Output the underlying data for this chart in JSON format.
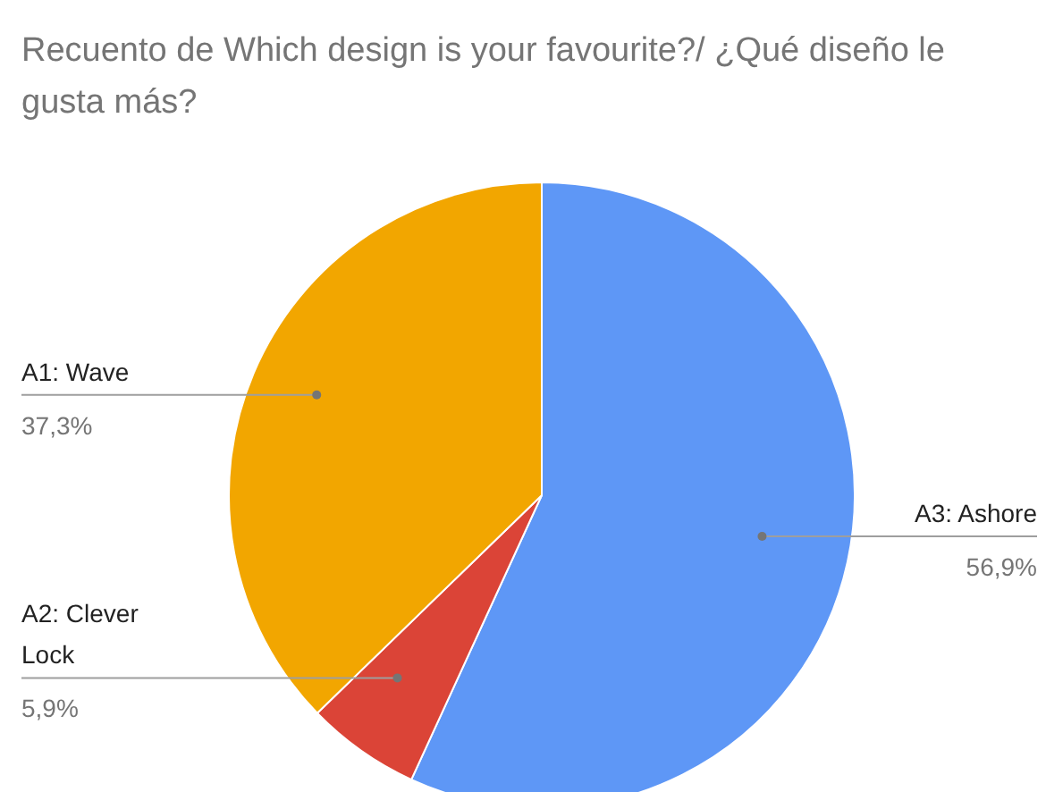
{
  "chart_data": {
    "type": "pie",
    "title": "Recuento de Which design is your favourite?/ ¿Qué diseño le gusta más?",
    "categories": [
      "A3: Ashore",
      "A2: Clever Lock",
      "A1: Wave"
    ],
    "values": [
      56.9,
      5.9,
      37.3
    ],
    "colors": [
      "#5e97f6",
      "#db4437",
      "#f2a600"
    ],
    "value_labels": [
      "56,9%",
      "5,9%",
      "37,3%"
    ],
    "legend": false
  }
}
